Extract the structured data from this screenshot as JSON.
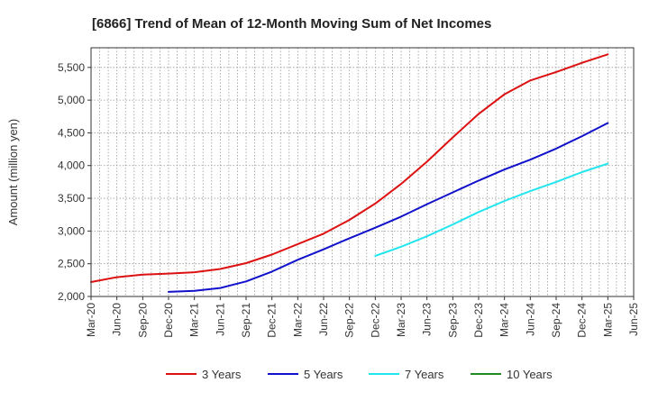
{
  "chart_data": {
    "type": "line",
    "title": "[6866]  Trend of Mean of 12-Month Moving Sum of Net Incomes",
    "xlabel": "",
    "ylabel": "Amount (million yen)",
    "ylim": [
      2000,
      5800
    ],
    "yticks": [
      "2,000",
      "2,500",
      "3,000",
      "3,500",
      "4,000",
      "4,500",
      "5,000",
      "5,500"
    ],
    "x": [
      "Mar-20",
      "Jun-20",
      "Sep-20",
      "Dec-20",
      "Mar-21",
      "Jun-21",
      "Sep-21",
      "Dec-21",
      "Mar-22",
      "Jun-22",
      "Sep-22",
      "Dec-22",
      "Mar-23",
      "Jun-23",
      "Sep-23",
      "Dec-23",
      "Mar-24",
      "Jun-24",
      "Sep-24",
      "Dec-24",
      "Mar-25",
      "Jun-25"
    ],
    "grid": true,
    "legend_position": "bottom",
    "series": [
      {
        "name": "3 Years",
        "color": "#dd1111",
        "values": [
          2220,
          2295,
          2335,
          2350,
          2370,
          2420,
          2510,
          2640,
          2800,
          2960,
          3170,
          3420,
          3720,
          4060,
          4430,
          4790,
          5090,
          5300,
          5430,
          5570,
          5700,
          null
        ]
      },
      {
        "name": "5 Years",
        "color": "#1111cc",
        "values": [
          null,
          null,
          null,
          2070,
          2085,
          2130,
          2230,
          2380,
          2560,
          2720,
          2890,
          3050,
          3220,
          3410,
          3590,
          3770,
          3940,
          4090,
          4260,
          4450,
          4650,
          null
        ]
      },
      {
        "name": "7 Years",
        "color": "#22e6ee",
        "values": [
          null,
          null,
          null,
          null,
          null,
          null,
          null,
          null,
          null,
          null,
          null,
          2620,
          2760,
          2920,
          3100,
          3290,
          3460,
          3610,
          3750,
          3900,
          4030,
          null
        ]
      },
      {
        "name": "10 Years",
        "color": "#228b22",
        "values": [
          null,
          null,
          null,
          null,
          null,
          null,
          null,
          null,
          null,
          null,
          null,
          null,
          null,
          null,
          null,
          null,
          null,
          null,
          null,
          null,
          null,
          null
        ]
      }
    ]
  }
}
